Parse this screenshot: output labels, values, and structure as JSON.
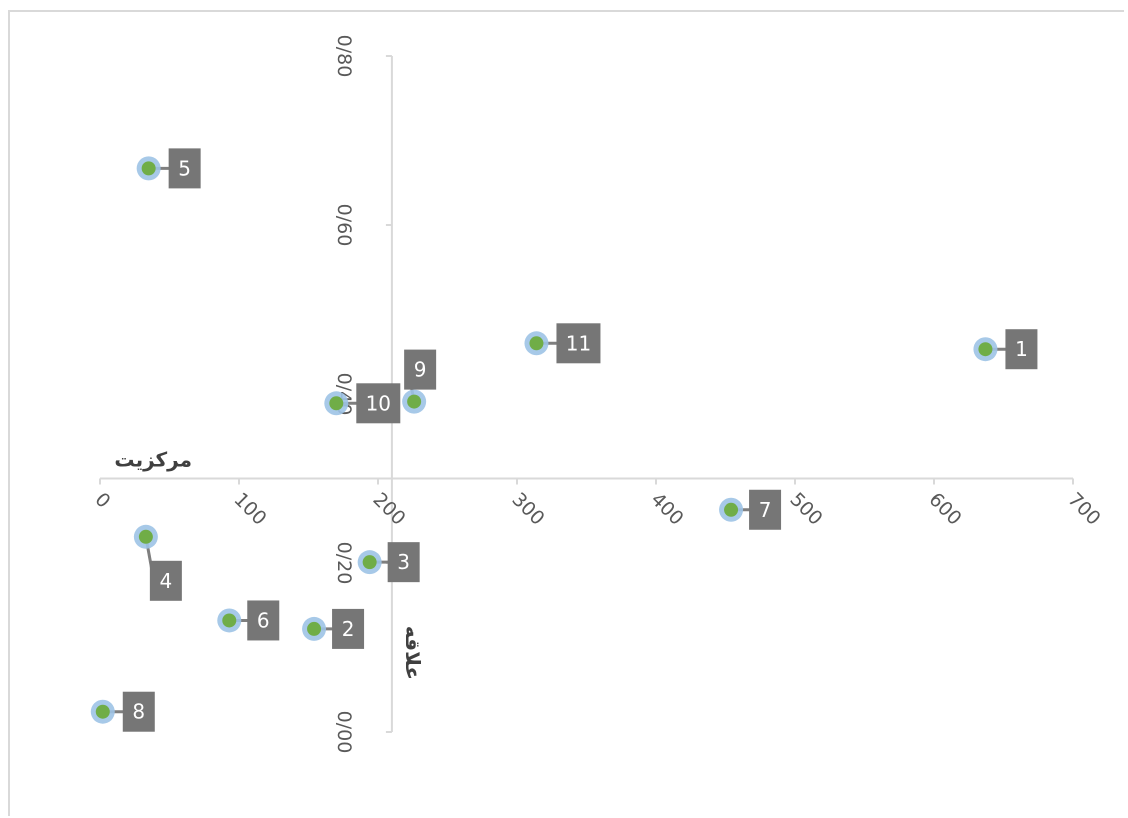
{
  "chart_data": {
    "type": "scatter",
    "title": "",
    "xlabel": "مرکزیت",
    "ylabel": "علاقه",
    "xlim": [
      0,
      700
    ],
    "ylim": [
      0,
      0.8
    ],
    "x_ticks": [
      "0",
      "100",
      "200",
      "300",
      "400",
      "500",
      "600",
      "700"
    ],
    "y_ticks": [
      "0/00",
      "0/20",
      "0/40",
      "0/60",
      "0/80"
    ],
    "x_axis_crosses_y_at": 0.3,
    "y_axis_crosses_x_at": 210,
    "grid": false,
    "legend": "none",
    "marker_fill": "#70ad47",
    "marker_ring": "#9dc3e6",
    "label_box": "#767676",
    "points": [
      {
        "label": "1",
        "x": 637,
        "y": 0.453
      },
      {
        "label": "2",
        "x": 154,
        "y": 0.122
      },
      {
        "label": "3",
        "x": 194,
        "y": 0.201
      },
      {
        "label": "4",
        "x": 33,
        "y": 0.231
      },
      {
        "label": "5",
        "x": 35,
        "y": 0.667
      },
      {
        "label": "6",
        "x": 93,
        "y": 0.132
      },
      {
        "label": "7",
        "x": 454,
        "y": 0.263
      },
      {
        "label": "8",
        "x": 2,
        "y": 0.024
      },
      {
        "label": "9",
        "x": 226,
        "y": 0.391
      },
      {
        "label": "10",
        "x": 170,
        "y": 0.389
      },
      {
        "label": "11",
        "x": 314,
        "y": 0.46
      }
    ]
  }
}
